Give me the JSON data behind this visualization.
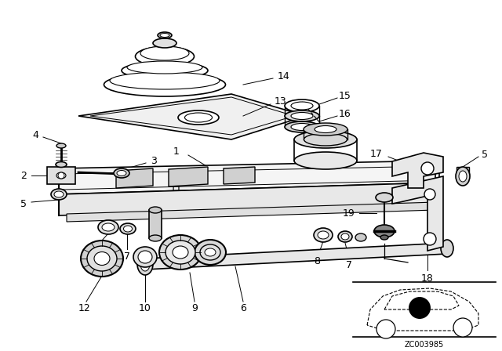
{
  "bg_color": "#ffffff",
  "fig_width": 6.4,
  "fig_height": 4.48,
  "dpi": 100,
  "watermark": "ZC003985",
  "line_color": "#000000",
  "label_font_size": 9
}
